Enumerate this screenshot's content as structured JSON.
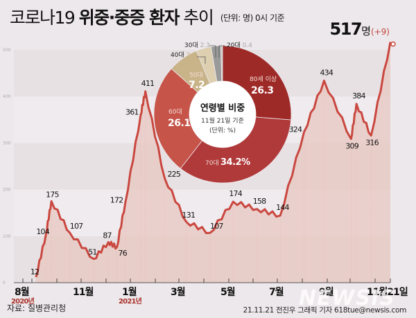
{
  "header": {
    "title_prefix": "코로나19",
    "title_bold": "위중·중증 환자",
    "title_suffix": "추이",
    "unit_note": "(단위: 명) 0시 기준"
  },
  "latest": {
    "value": "517",
    "unit": "명",
    "delta": "(+9)"
  },
  "footer": {
    "source": "자료: 질병관리청",
    "credit": "21.11.21 전진우 그래픽 기자 618tue@newsis.com",
    "watermark": "NEWSIS"
  },
  "colors": {
    "line": "#c9473f",
    "fill": "#e8c7c0",
    "background": "#ede8eb",
    "year_label": "#a8302a"
  },
  "chart_data": [
    {
      "type": "area",
      "title": "코로나19 위중·중증 환자 추이",
      "ylabel": "(단위: 명)",
      "ylim": [
        0,
        500
      ],
      "yticks": [
        0,
        100,
        200,
        300,
        400,
        500
      ],
      "grid": "alternating bands",
      "x_tick_labels": [
        "8월",
        "11월",
        "1월",
        "3월",
        "5월",
        "7월",
        "9월",
        "11월21일"
      ],
      "year_labels": [
        {
          "at": "8월",
          "label": "2020년"
        },
        {
          "at": "1월",
          "label": "2021년"
        }
      ],
      "annotated_points": [
        {
          "x": "2020-08-18",
          "value": 12
        },
        {
          "x": "2020-08-31",
          "value": 104
        },
        {
          "x": "2020-09-07",
          "value": 175
        },
        {
          "x": "2020-10-01",
          "value": 107
        },
        {
          "x": "2020-11-01",
          "value": 51
        },
        {
          "x": "2020-11-20",
          "value": 87
        },
        {
          "x": "2020-12-01",
          "value": 76
        },
        {
          "x": "2020-12-12",
          "value": 172
        },
        {
          "x": "2021-01-01",
          "value": 361
        },
        {
          "x": "2021-01-07",
          "value": 411
        },
        {
          "x": "2021-02-01",
          "value": 225
        },
        {
          "x": "2021-03-01",
          "value": 131
        },
        {
          "x": "2021-04-01",
          "value": 107
        },
        {
          "x": "2021-05-01",
          "value": 174
        },
        {
          "x": "2021-06-01",
          "value": 158
        },
        {
          "x": "2021-07-01",
          "value": 144
        },
        {
          "x": "2021-08-01",
          "value": 324
        },
        {
          "x": "2021-08-27",
          "value": 434
        },
        {
          "x": "2021-10-01",
          "value": 309
        },
        {
          "x": "2021-10-08",
          "value": 384
        },
        {
          "x": "2021-10-27",
          "value": 316
        },
        {
          "x": "2021-11-21",
          "value": 517
        }
      ],
      "latest": {
        "value": 517,
        "delta": 9
      }
    },
    {
      "type": "pie",
      "title": "연령별 비중",
      "subtitle": "11월 21일 기준",
      "unit": "(단위: %)",
      "donut": true,
      "categories": [
        "80세 이상",
        "70대",
        "60대",
        "50대",
        "40대",
        "30대",
        "20대"
      ],
      "values": [
        26.3,
        34.2,
        26.1,
        7.2,
        3.5,
        2.3,
        0.4
      ],
      "colors": [
        "#9e2a27",
        "#b0393a",
        "#c65449",
        "#c9b48a",
        "#ddcfb0",
        "#9a9a9a",
        "#c8c8c8"
      ]
    }
  ]
}
